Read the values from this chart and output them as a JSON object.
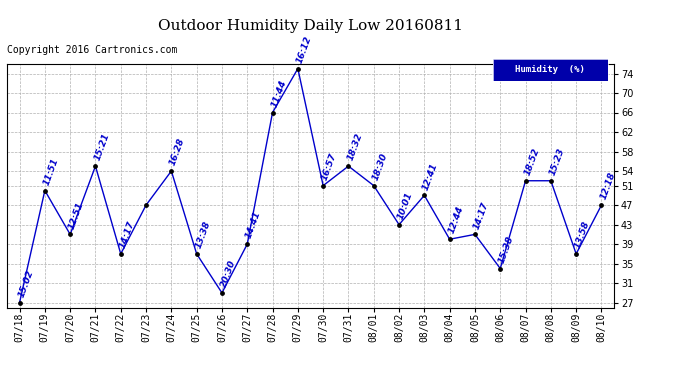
{
  "title": "Outdoor Humidity Daily Low 20160811",
  "copyright": "Copyright 2016 Cartronics.com",
  "legend_label": "Humidity  (%)",
  "x_labels": [
    "07/18",
    "07/19",
    "07/20",
    "07/21",
    "07/22",
    "07/23",
    "07/24",
    "07/25",
    "07/26",
    "07/27",
    "07/28",
    "07/29",
    "07/30",
    "07/31",
    "08/01",
    "08/02",
    "08/03",
    "08/04",
    "08/05",
    "08/06",
    "08/07",
    "08/08",
    "08/09",
    "08/10"
  ],
  "y_values": [
    27,
    50,
    41,
    55,
    37,
    47,
    54,
    37,
    29,
    39,
    66,
    75,
    51,
    55,
    51,
    43,
    49,
    40,
    41,
    34,
    52,
    52,
    37,
    47
  ],
  "point_labels": [
    "15:02",
    "11:51",
    "12:51",
    "15:21",
    "14:17",
    "",
    "16:28",
    "13:38",
    "20:30",
    "14:41",
    "11:44",
    "16:12",
    "16:57",
    "18:32",
    "18:30",
    "10:01",
    "12:41",
    "12:44",
    "14:17",
    "15:38",
    "18:52",
    "15:23",
    "13:58",
    "12:18"
  ],
  "line_color": "#0000cc",
  "marker_color": "#000000",
  "label_color": "#0000cc",
  "background_color": "#ffffff",
  "grid_color": "#b0b0b0",
  "title_color": "#000000",
  "copyright_color": "#000000",
  "legend_bg": "#0000aa",
  "legend_fg": "#ffffff",
  "ylim_min": 26,
  "ylim_max": 76,
  "yticks": [
    27,
    31,
    35,
    39,
    43,
    47,
    51,
    54,
    58,
    62,
    66,
    70,
    74
  ],
  "title_fontsize": 11,
  "label_fontsize": 6.5,
  "copyright_fontsize": 7,
  "tick_fontsize": 7
}
